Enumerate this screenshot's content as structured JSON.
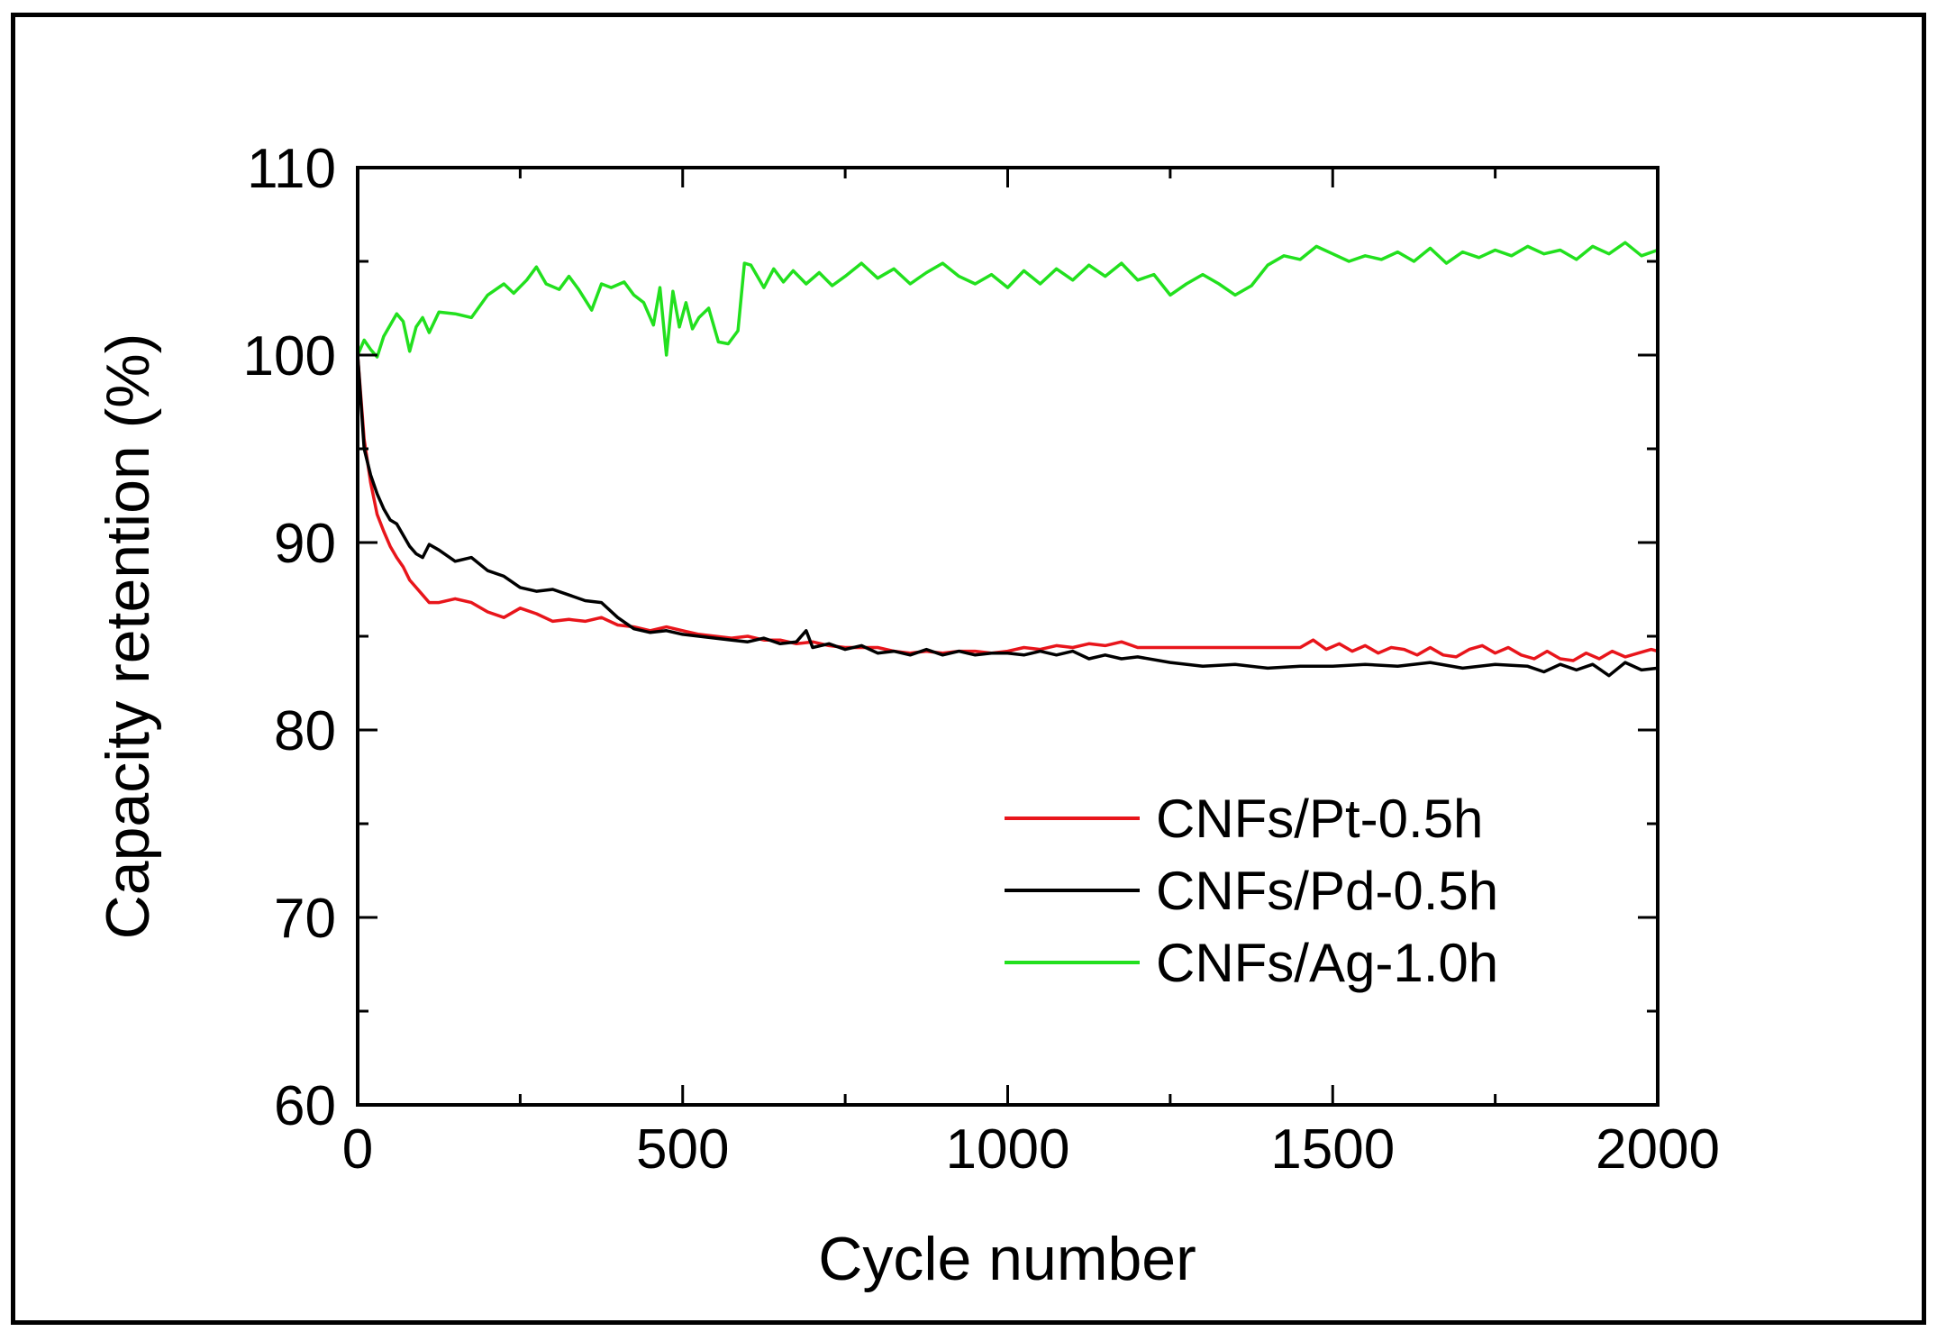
{
  "chart_data": {
    "type": "line",
    "title": "",
    "xlabel": "Cycle number",
    "ylabel": "Capacity retention (%)",
    "xlim": [
      0,
      2000
    ],
    "ylim": [
      60,
      110
    ],
    "x_ticks": [
      0,
      500,
      1000,
      1500,
      2000
    ],
    "y_ticks": [
      60,
      70,
      80,
      90,
      100,
      110
    ],
    "grid": false,
    "legend_position": "bottom-right",
    "series": [
      {
        "name": "CNFs/Pt-0.5h",
        "color": "#e8151b",
        "x": [
          0,
          10,
          20,
          30,
          40,
          50,
          60,
          70,
          80,
          90,
          100,
          110,
          125,
          150,
          175,
          200,
          225,
          250,
          275,
          300,
          325,
          350,
          375,
          400,
          425,
          450,
          475,
          500,
          525,
          550,
          575,
          600,
          625,
          650,
          675,
          700,
          725,
          750,
          775,
          800,
          825,
          850,
          875,
          900,
          925,
          950,
          975,
          1000,
          1025,
          1050,
          1075,
          1100,
          1125,
          1150,
          1175,
          1200,
          1250,
          1300,
          1350,
          1400,
          1450,
          1470,
          1490,
          1510,
          1530,
          1550,
          1570,
          1590,
          1610,
          1630,
          1650,
          1670,
          1690,
          1710,
          1730,
          1750,
          1770,
          1790,
          1810,
          1830,
          1850,
          1870,
          1890,
          1910,
          1930,
          1950,
          1970,
          1990,
          2000
        ],
        "values": [
          100,
          95.5,
          93.2,
          91.5,
          90.6,
          89.8,
          89.2,
          88.7,
          88.0,
          87.6,
          87.2,
          86.8,
          86.8,
          87.0,
          86.8,
          86.3,
          86.0,
          86.5,
          86.2,
          85.8,
          85.9,
          85.8,
          86.0,
          85.6,
          85.5,
          85.3,
          85.5,
          85.3,
          85.1,
          85.0,
          84.9,
          85.0,
          84.8,
          84.8,
          84.6,
          84.7,
          84.5,
          84.4,
          84.4,
          84.4,
          84.2,
          84.1,
          84.2,
          84.1,
          84.2,
          84.2,
          84.1,
          84.2,
          84.4,
          84.3,
          84.5,
          84.4,
          84.6,
          84.5,
          84.7,
          84.4,
          84.4,
          84.4,
          84.4,
          84.4,
          84.4,
          84.8,
          84.3,
          84.6,
          84.2,
          84.5,
          84.1,
          84.4,
          84.3,
          84.0,
          84.4,
          84.0,
          83.9,
          84.3,
          84.5,
          84.1,
          84.4,
          84.0,
          83.8,
          84.2,
          83.8,
          83.7,
          84.1,
          83.8,
          84.2,
          83.9,
          84.1,
          84.3,
          84.2
        ]
      },
      {
        "name": "CNFs/Pd-0.5h",
        "color": "#000000",
        "x": [
          0,
          10,
          20,
          30,
          40,
          50,
          60,
          70,
          80,
          90,
          100,
          110,
          125,
          150,
          175,
          200,
          225,
          250,
          275,
          300,
          325,
          350,
          375,
          400,
          425,
          450,
          475,
          500,
          525,
          550,
          575,
          600,
          625,
          650,
          675,
          690,
          700,
          725,
          750,
          775,
          800,
          825,
          850,
          875,
          900,
          925,
          950,
          975,
          1000,
          1025,
          1050,
          1075,
          1100,
          1125,
          1150,
          1175,
          1200,
          1250,
          1300,
          1350,
          1400,
          1450,
          1500,
          1550,
          1600,
          1650,
          1700,
          1750,
          1800,
          1825,
          1850,
          1875,
          1900,
          1925,
          1950,
          1975,
          2000
        ],
        "values": [
          100,
          95.0,
          93.6,
          92.6,
          91.8,
          91.2,
          91.0,
          90.4,
          89.8,
          89.4,
          89.2,
          89.9,
          89.6,
          89.0,
          89.2,
          88.5,
          88.2,
          87.6,
          87.4,
          87.5,
          87.2,
          86.9,
          86.8,
          86.0,
          85.4,
          85.2,
          85.3,
          85.1,
          85.0,
          84.9,
          84.8,
          84.7,
          84.9,
          84.6,
          84.7,
          85.3,
          84.4,
          84.6,
          84.3,
          84.5,
          84.1,
          84.2,
          84.0,
          84.3,
          84.0,
          84.2,
          84.0,
          84.1,
          84.1,
          84.0,
          84.2,
          84.0,
          84.2,
          83.8,
          84.0,
          83.8,
          83.9,
          83.6,
          83.4,
          83.5,
          83.3,
          83.4,
          83.4,
          83.5,
          83.4,
          83.6,
          83.3,
          83.5,
          83.4,
          83.1,
          83.5,
          83.2,
          83.5,
          82.9,
          83.6,
          83.2,
          83.3
        ]
      },
      {
        "name": "CNFs/Ag-1.0h",
        "color": "#22e01e",
        "x": [
          0,
          10,
          20,
          30,
          40,
          50,
          60,
          70,
          80,
          90,
          100,
          110,
          125,
          150,
          175,
          200,
          225,
          240,
          260,
          275,
          290,
          310,
          325,
          340,
          360,
          375,
          390,
          410,
          425,
          440,
          455,
          465,
          475,
          485,
          495,
          505,
          515,
          525,
          540,
          555,
          570,
          585,
          595,
          605,
          625,
          640,
          655,
          670,
          690,
          710,
          730,
          750,
          775,
          800,
          825,
          850,
          875,
          900,
          925,
          950,
          975,
          1000,
          1025,
          1050,
          1075,
          1100,
          1125,
          1150,
          1175,
          1200,
          1225,
          1250,
          1275,
          1300,
          1325,
          1350,
          1375,
          1400,
          1425,
          1450,
          1475,
          1500,
          1525,
          1550,
          1575,
          1600,
          1625,
          1650,
          1675,
          1700,
          1725,
          1750,
          1775,
          1800,
          1825,
          1850,
          1875,
          1900,
          1925,
          1950,
          1975,
          2000
        ],
        "values": [
          100,
          100.8,
          100.3,
          99.9,
          101.0,
          101.6,
          102.2,
          101.8,
          100.2,
          101.5,
          102.0,
          101.2,
          102.3,
          102.2,
          102.0,
          103.2,
          103.8,
          103.3,
          104.0,
          104.7,
          103.8,
          103.5,
          104.2,
          103.5,
          102.4,
          103.8,
          103.6,
          103.9,
          103.2,
          102.8,
          101.6,
          103.6,
          100.0,
          103.4,
          101.5,
          102.8,
          101.4,
          102.0,
          102.5,
          100.7,
          100.6,
          101.3,
          104.9,
          104.8,
          103.6,
          104.6,
          103.9,
          104.5,
          103.8,
          104.4,
          103.7,
          104.2,
          104.9,
          104.1,
          104.6,
          103.8,
          104.4,
          104.9,
          104.2,
          103.8,
          104.3,
          103.6,
          104.5,
          103.8,
          104.6,
          104.0,
          104.8,
          104.2,
          104.9,
          104.0,
          104.3,
          103.2,
          103.8,
          104.3,
          103.8,
          103.2,
          103.7,
          104.8,
          105.3,
          105.1,
          105.8,
          105.4,
          105.0,
          105.3,
          105.1,
          105.5,
          105.0,
          105.7,
          104.9,
          105.5,
          105.2,
          105.6,
          105.3,
          105.8,
          105.4,
          105.6,
          105.1,
          105.8,
          105.4,
          106.0,
          105.3,
          105.6
        ]
      }
    ]
  }
}
